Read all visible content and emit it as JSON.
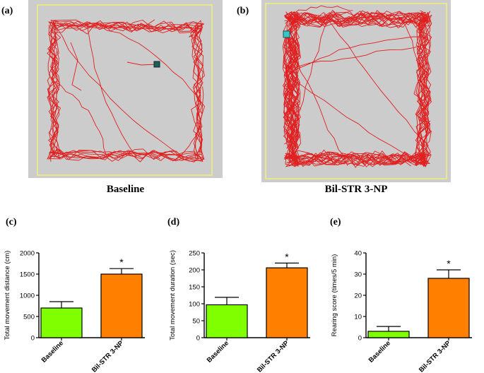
{
  "panels": {
    "a": "(a)",
    "b": "(b)",
    "c": "(c)",
    "d": "(d)",
    "e": "(e)"
  },
  "tracks": {
    "a_caption": "Baseline",
    "b_caption": "Bil-STR 3-NP",
    "arena_color": "#cccccc",
    "border_color": "#f2f07a",
    "path_color": "#e02020"
  },
  "chart_data": [
    {
      "type": "bar",
      "categories": [
        "Baseline",
        "Bil-STR 3-NP"
      ],
      "values": [
        700,
        1500
      ],
      "errors": [
        150,
        130
      ],
      "colors": [
        "#7fff00",
        "#ff8000"
      ],
      "significance": [
        "",
        "*"
      ],
      "ylabel": "Total movement distance (cm)",
      "ylim": [
        0,
        2000
      ],
      "yticks": [
        "0",
        "500",
        "1000",
        "1500",
        "2000"
      ]
    },
    {
      "type": "bar",
      "categories": [
        "Baseline",
        "Bil-STR 3-NP"
      ],
      "values": [
        97,
        206
      ],
      "errors": [
        22,
        14
      ],
      "colors": [
        "#7fff00",
        "#ff8000"
      ],
      "significance": [
        "",
        "*"
      ],
      "ylabel": "Total movement duration (sec)",
      "ylim": [
        0,
        250
      ],
      "yticks": [
        "0",
        "50",
        "100",
        "150",
        "200",
        "250"
      ]
    },
    {
      "type": "bar",
      "categories": [
        "Baseline",
        "Bil-STR 3-NP"
      ],
      "values": [
        3,
        28
      ],
      "errors": [
        2.3,
        4
      ],
      "colors": [
        "#7fff00",
        "#ff8000"
      ],
      "significance": [
        "",
        "*"
      ],
      "ylabel": "Rearing score (times/5 min)",
      "ylim": [
        0,
        40
      ],
      "yticks": [
        "0",
        "10",
        "20",
        "30",
        "40"
      ]
    }
  ]
}
